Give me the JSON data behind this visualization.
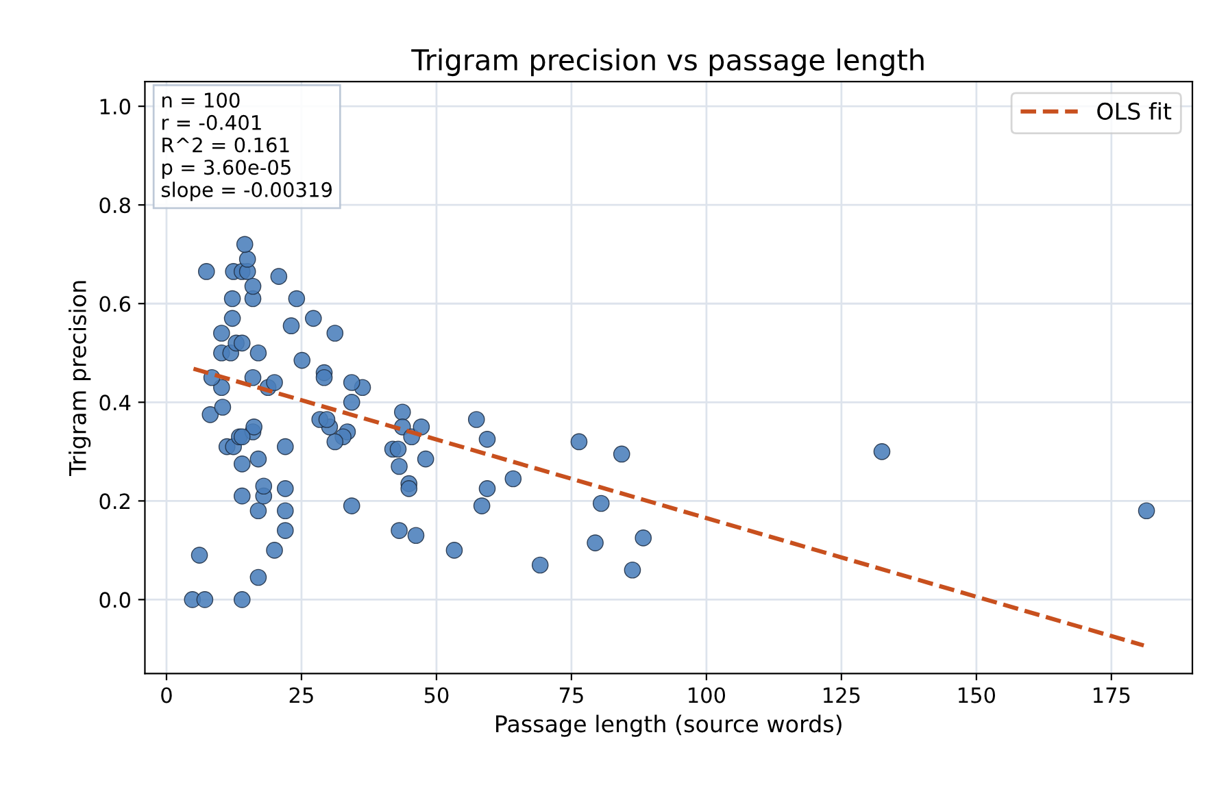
{
  "chart_data": {
    "type": "scatter",
    "title": "Trigram precision vs passage length",
    "xlabel": "Passage length (source words)",
    "ylabel": "Trigram precision",
    "xlim": [
      -4,
      190
    ],
    "ylim": [
      -0.15,
      1.05
    ],
    "xticks": [
      0,
      25,
      50,
      75,
      100,
      125,
      150,
      175
    ],
    "yticks": [
      {
        "value": 0,
        "label": "0.0"
      },
      {
        "value": 0.2,
        "label": "0.2"
      },
      {
        "value": 0.4,
        "label": "0.4"
      },
      {
        "value": 0.6,
        "label": "0.6"
      },
      {
        "value": 0.8,
        "label": "0.8"
      },
      {
        "value": 1.0,
        "label": "1.0"
      }
    ],
    "grid": true,
    "legend": "top right",
    "marker": "circle",
    "annotations": [
      "n = 100\nr = -0.401\nR^2 = 0.161\np = 3.60e-05\nslope = -0.00319"
    ],
    "series": [
      {
        "color": "#4a7ebb",
        "x": [
          4.8,
          7.1,
          14,
          6.1,
          17,
          20,
          14,
          17,
          22,
          22,
          22,
          18,
          18,
          14,
          17,
          22,
          11.2,
          12.4,
          13.5,
          16,
          16.2,
          14,
          8.1,
          10.4,
          10.2,
          18.8,
          20,
          8.4,
          16,
          10.2,
          11.9,
          17,
          12.9,
          14,
          10.2,
          12.2,
          23.1,
          12.2,
          16,
          7.4,
          12.4,
          14,
          15,
          20.8,
          15,
          16,
          14.5,
          24.1,
          27.2,
          31.2,
          25.1,
          29.2,
          29.2,
          36.3,
          34.3,
          34.3,
          33.5,
          32.7,
          31.2,
          30.2,
          28.4,
          29.7,
          34.3,
          41.9,
          42.9,
          43.7,
          43.7,
          45.4,
          47.2,
          48,
          43.1,
          43.1,
          44.9,
          44.9,
          46.2,
          53.3,
          57.4,
          59.4,
          59.4,
          58.4,
          64.2,
          69.2,
          76.4,
          79.4,
          80.5,
          84.3,
          86.3,
          88.3,
          132.5,
          181.5
        ],
        "values": [
          0,
          0,
          0,
          0.09,
          0.045,
          0.1,
          0.21,
          0.18,
          0.14,
          0.18,
          0.225,
          0.21,
          0.23,
          0.275,
          0.285,
          0.31,
          0.31,
          0.31,
          0.33,
          0.34,
          0.35,
          0.33,
          0.375,
          0.39,
          0.43,
          0.43,
          0.44,
          0.45,
          0.45,
          0.5,
          0.5,
          0.5,
          0.52,
          0.52,
          0.54,
          0.57,
          0.555,
          0.61,
          0.61,
          0.665,
          0.665,
          0.665,
          0.665,
          0.655,
          0.69,
          0.635,
          0.72,
          0.61,
          0.57,
          0.54,
          0.485,
          0.46,
          0.45,
          0.43,
          0.44,
          0.4,
          0.34,
          0.33,
          0.32,
          0.35,
          0.365,
          0.365,
          0.19,
          0.305,
          0.305,
          0.38,
          0.35,
          0.33,
          0.35,
          0.285,
          0.27,
          0.14,
          0.235,
          0.225,
          0.13,
          0.1,
          0.365,
          0.325,
          0.225,
          0.19,
          0.245,
          0.07,
          0.32,
          0.115,
          0.195,
          0.295,
          0.06,
          0.125,
          0.3,
          0.18
        ]
      },
      {
        "type": "line",
        "name": "OLS fit",
        "color": "#c8501e",
        "line_style": "dashed",
        "marker": "none",
        "x": [
          5,
          181
        ],
        "values": [
          0.468,
          -0.093
        ]
      }
    ]
  }
}
